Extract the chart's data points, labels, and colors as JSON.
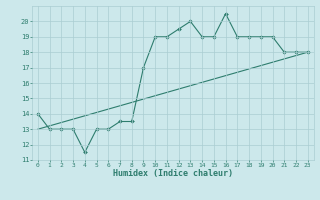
{
  "xlabel": "Humidex (Indice chaleur)",
  "x_values": [
    0,
    1,
    2,
    3,
    4,
    5,
    6,
    7,
    8,
    9,
    10,
    11,
    12,
    13,
    14,
    15,
    16,
    17,
    18,
    19,
    20,
    21,
    22,
    23
  ],
  "line1_y": [
    14,
    13,
    13,
    13,
    11.5,
    13,
    13,
    13.5,
    13.5,
    17,
    19,
    19,
    19.5,
    20,
    19,
    19,
    20.5,
    19,
    19,
    19,
    19,
    18,
    18,
    18
  ],
  "trend_x": [
    0,
    23
  ],
  "trend_y": [
    13,
    18
  ],
  "line_color": "#2e7d6e",
  "bg_color": "#cce8eb",
  "grid_color": "#aacdd2",
  "ylim": [
    11,
    21
  ],
  "xlim": [
    -0.5,
    23.5
  ],
  "yticks": [
    11,
    12,
    13,
    14,
    15,
    16,
    17,
    18,
    19,
    20
  ],
  "xticks": [
    0,
    1,
    2,
    3,
    4,
    5,
    6,
    7,
    8,
    9,
    10,
    11,
    12,
    13,
    14,
    15,
    16,
    17,
    18,
    19,
    20,
    21,
    22,
    23
  ]
}
